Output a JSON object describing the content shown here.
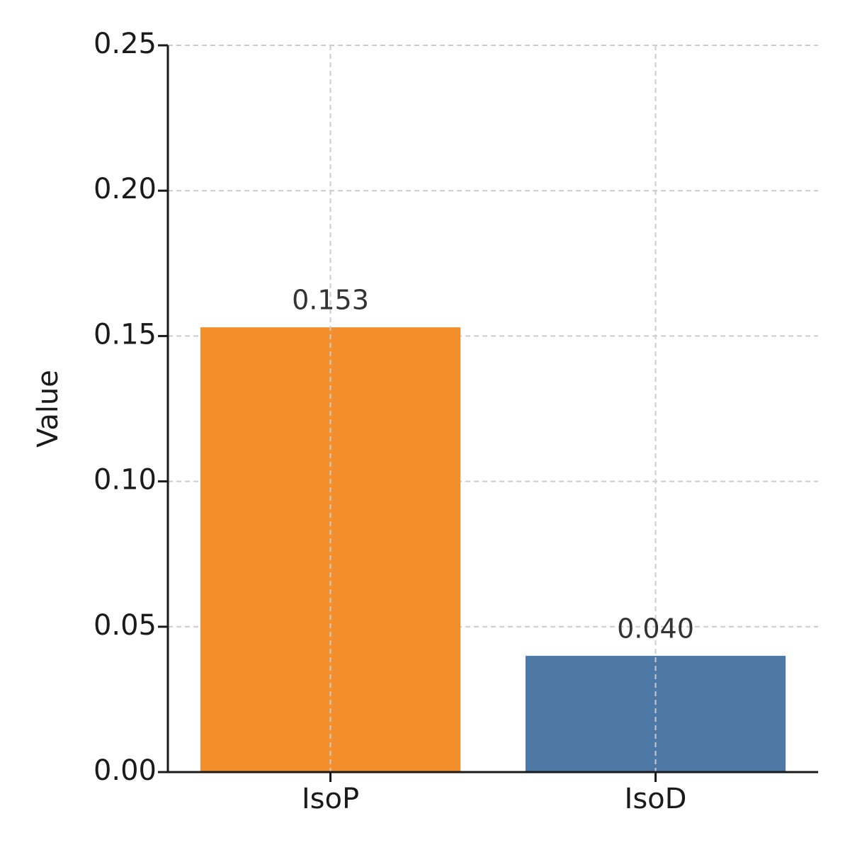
{
  "chart_data": {
    "type": "bar",
    "y_label": "Value",
    "categories": [
      "IsoP",
      "IsoD"
    ],
    "values": [
      0.153,
      0.04
    ],
    "value_labels": [
      "0.153",
      "0.040"
    ],
    "colors": [
      "#f28f2c",
      "#4e79a7"
    ],
    "ylim": [
      0,
      0.25
    ],
    "yticks": [
      {
        "value": 0,
        "label": "0.00"
      },
      {
        "value": 0.05,
        "label": "0.05"
      },
      {
        "value": 0.1,
        "label": "0.10"
      },
      {
        "value": 0.15,
        "label": "0.15"
      },
      {
        "value": 0.2,
        "label": "0.20"
      },
      {
        "value": 0.25,
        "label": "0.25"
      }
    ],
    "grid": true
  }
}
